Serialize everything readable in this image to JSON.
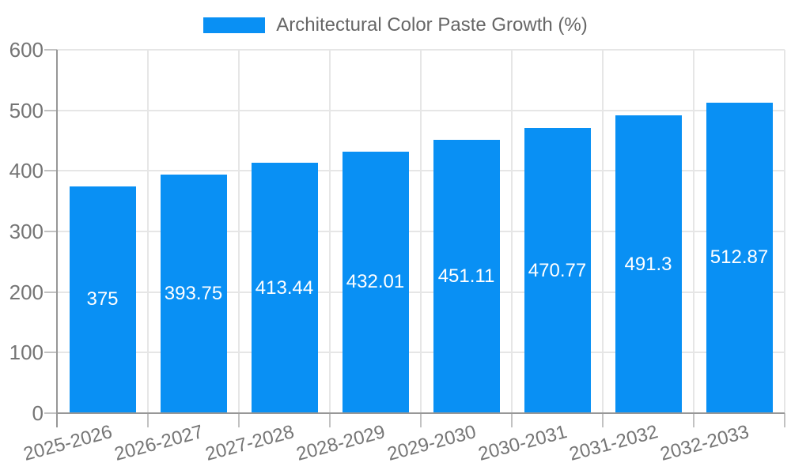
{
  "colors": {
    "bar": "#0990F4",
    "grid": "#e6e6e6",
    "tick": "#c2c2c2",
    "axis": "#979797",
    "axis_label_text": "#757575",
    "legend_text": "#666666",
    "value_label_text": "#ffffff",
    "background": "#ffffff"
  },
  "legend": {
    "label": "Architectural Color Paste Growth (%)"
  },
  "chart_data": {
    "type": "bar",
    "title": "Architectural Color Paste Growth (%)",
    "categories": [
      "2025-2026",
      "2026-2027",
      "2027-2028",
      "2028-2029",
      "2029-2030",
      "2030-2031",
      "2031-2032",
      "2032-2033"
    ],
    "values": [
      375,
      393.75,
      413.44,
      432.01,
      451.11,
      470.77,
      491.3,
      512.87
    ],
    "value_labels": [
      "375",
      "393.75",
      "413.44",
      "432.01",
      "451.11",
      "470.77",
      "491.3",
      "512.87"
    ],
    "xlabel": "",
    "ylabel": "",
    "ylim": [
      0,
      600
    ],
    "yticks": [
      0,
      100,
      200,
      300,
      400,
      500,
      600
    ],
    "grid": "on",
    "legend_position": "top",
    "x_tick_label_rotation_deg": -15
  }
}
